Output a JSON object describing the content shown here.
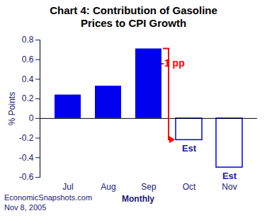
{
  "chart_data": {
    "type": "bar",
    "title": "Chart 4: Contribution of Gasoline Prices to CPI Growth",
    "categories": [
      "Jul",
      "Aug",
      "Sep",
      "Oct",
      "Nov"
    ],
    "values": [
      0.24,
      0.33,
      0.71,
      -0.22,
      -0.5
    ],
    "color": "#0000ee",
    "ylabel": "% Points",
    "xlabel": "Monthly",
    "ylim": [
      -0.6,
      0.8
    ],
    "yticks": [
      -0.6,
      -0.4,
      -0.2,
      0,
      0.2,
      0.4,
      0.6,
      0.8
    ],
    "annotations": [
      {
        "text": "Est",
        "category": "Oct"
      },
      {
        "text": "Est",
        "category": "Nov"
      },
      {
        "text": "-1 pp",
        "from": "Sep",
        "to": "Oct",
        "color": "#ff0000"
      }
    ],
    "source": "EconomicSnapshots.com",
    "date": "Nov 8, 2005"
  }
}
